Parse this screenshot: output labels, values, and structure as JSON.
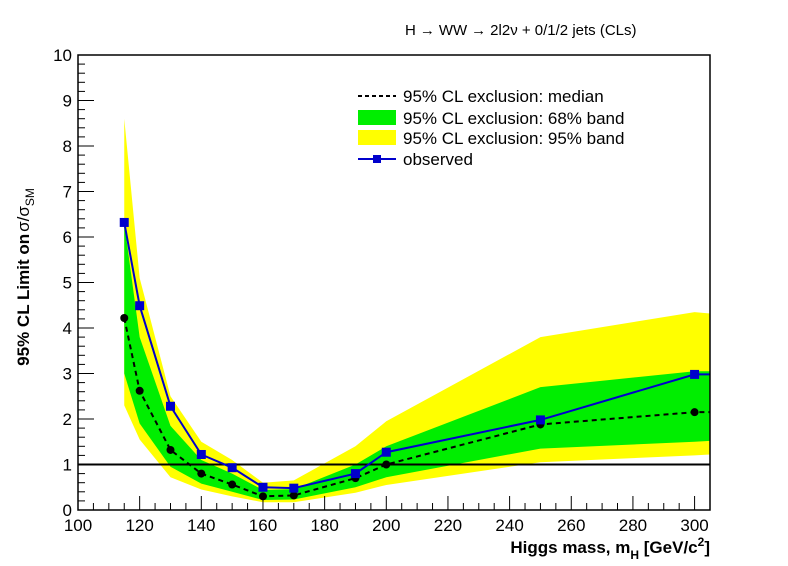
{
  "chart_data": {
    "type": "line",
    "title_parts": [
      "H",
      "→",
      "WW",
      "→",
      "2l2ν + 0/1/2 jets (CLs)"
    ],
    "xlabel": {
      "main": "Higgs mass, m",
      "sub": "H",
      "unit_open": " [GeV/c",
      "sup": "2",
      "unit_close": "]"
    },
    "ylabel": {
      "main": "95% CL Limit on",
      "ratio_num": "σ/σ",
      "sub": "SM"
    },
    "xlim": [
      100,
      305
    ],
    "ylim": [
      0,
      10
    ],
    "x_ticks": [
      100,
      120,
      140,
      160,
      180,
      200,
      220,
      240,
      260,
      280,
      300
    ],
    "y_ticks": [
      0,
      1,
      2,
      3,
      4,
      5,
      6,
      7,
      8,
      9,
      10
    ],
    "reference_line": 1,
    "x": [
      115,
      120,
      130,
      140,
      150,
      160,
      170,
      190,
      200,
      250,
      300
    ],
    "series": [
      {
        "name": "observed",
        "values": [
          6.32,
          4.49,
          2.28,
          1.22,
          0.93,
          0.5,
          0.48,
          0.8,
          1.27,
          1.98,
          2.98
        ]
      },
      {
        "name": "median",
        "values": [
          4.22,
          2.62,
          1.32,
          0.8,
          0.56,
          0.3,
          0.32,
          0.7,
          1.0,
          1.88,
          2.15
        ]
      }
    ],
    "band_x": [
      115,
      120,
      130,
      140,
      150,
      160,
      170,
      190,
      200,
      250,
      300,
      305
    ],
    "band68_low": [
      3.0,
      1.9,
      0.95,
      0.58,
      0.4,
      0.22,
      0.23,
      0.5,
      0.72,
      1.35,
      1.5,
      1.52
    ],
    "band68_high": [
      6.3,
      3.8,
      1.85,
      1.1,
      0.8,
      0.44,
      0.46,
      1.0,
      1.4,
      2.7,
      3.05,
      3.05
    ],
    "band95_low": [
      2.3,
      1.55,
      0.72,
      0.45,
      0.3,
      0.17,
      0.17,
      0.38,
      0.55,
      1.05,
      1.2,
      1.22
    ],
    "band95_high": [
      8.6,
      5.1,
      2.5,
      1.5,
      1.1,
      0.6,
      0.65,
      1.4,
      1.95,
      3.8,
      4.35,
      4.32
    ],
    "legend": {
      "position": "top-right",
      "entries": [
        {
          "key": "median",
          "label": "95% CL exclusion: median"
        },
        {
          "key": "band68",
          "label": "95% CL exclusion: 68% band"
        },
        {
          "key": "band95",
          "label": "95% CL exclusion: 95% band"
        },
        {
          "key": "observed",
          "label": "observed"
        }
      ]
    },
    "colors": {
      "band68": "#00ee00",
      "band95": "#ffff00",
      "observed": "#0000cc",
      "median": "#000000",
      "axis": "#000000"
    }
  }
}
